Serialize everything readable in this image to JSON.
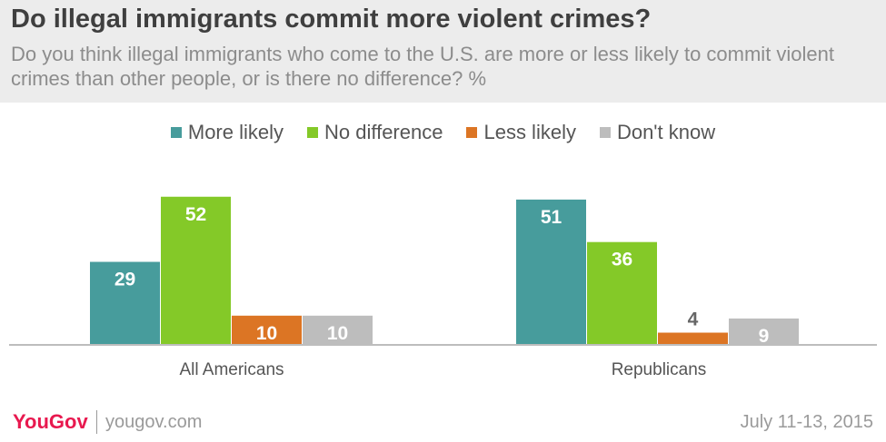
{
  "header": {
    "title": "Do illegal immigrants commit more violent crimes?",
    "subtitle": "Do you think illegal immigrants who come to the U.S. are more or less likely to commit violent crimes than other people, or is there no difference? %"
  },
  "colors": {
    "header_bg": "#ececec",
    "more_likely": "#479c9c",
    "no_difference": "#84c928",
    "less_likely": "#dc7524",
    "dont_know": "#bdbdbd",
    "brand": "#e8194f"
  },
  "chart_data": {
    "type": "bar",
    "title": "Do illegal immigrants commit more violent crimes?",
    "categories": [
      "All Americans",
      "Republicans"
    ],
    "series": [
      {
        "name": "More likely",
        "values": [
          29,
          51
        ],
        "color": "#479c9c"
      },
      {
        "name": "No difference",
        "values": [
          52,
          36
        ],
        "color": "#84c928"
      },
      {
        "name": "Less likely",
        "values": [
          10,
          4
        ],
        "color": "#dc7524"
      },
      {
        "name": "Don't know",
        "values": [
          10,
          9
        ],
        "color": "#bdbdbd"
      }
    ],
    "ylim": [
      0,
      62
    ],
    "legend": "top-center",
    "grid": false,
    "data_labels": true
  },
  "footer": {
    "logo": "YouGov",
    "site": "yougov.com",
    "date": "July 11-13, 2015"
  }
}
